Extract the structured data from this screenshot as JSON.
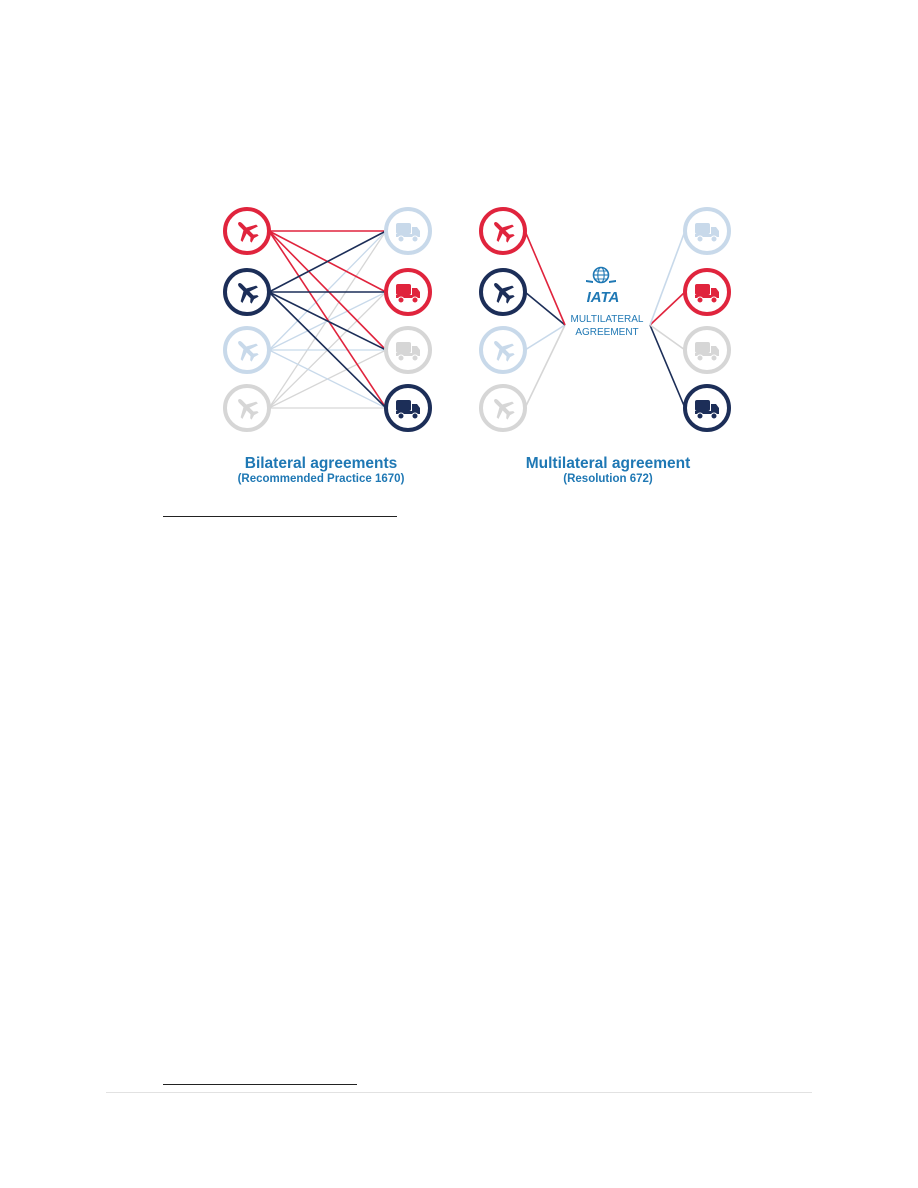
{
  "diagram": {
    "colors": {
      "red": "#e0243d",
      "navy": "#1c2e58",
      "lightblue": "#c8d9ea",
      "lightgray": "#d6d6d6",
      "accent": "#1f78b4"
    },
    "left": {
      "title": "Bilateral agreements",
      "subtitle": "(Recommended Practice 1670)",
      "airlines": [
        {
          "icon": "plane-icon",
          "color": "red"
        },
        {
          "icon": "plane-icon",
          "color": "navy"
        },
        {
          "icon": "plane-icon",
          "color": "lightblue"
        },
        {
          "icon": "plane-icon",
          "color": "lightgray"
        }
      ],
      "providers": [
        {
          "icon": "truck-icon",
          "color": "lightblue"
        },
        {
          "icon": "truck-icon",
          "color": "red"
        },
        {
          "icon": "truck-icon",
          "color": "lightgray"
        },
        {
          "icon": "truck-icon",
          "color": "navy"
        }
      ]
    },
    "right": {
      "title": "Multilateral agreement",
      "subtitle": "(Resolution 672)",
      "hub_logo": "IATA",
      "hub_label_1": "MULTILATERAL",
      "hub_label_2": "AGREEMENT",
      "airlines": [
        {
          "icon": "plane-icon",
          "color": "red"
        },
        {
          "icon": "plane-icon",
          "color": "navy"
        },
        {
          "icon": "plane-icon",
          "color": "lightblue"
        },
        {
          "icon": "plane-icon",
          "color": "lightgray"
        }
      ],
      "providers": [
        {
          "icon": "truck-icon",
          "color": "lightblue"
        },
        {
          "icon": "truck-icon",
          "color": "red"
        },
        {
          "icon": "truck-icon",
          "color": "lightgray"
        },
        {
          "icon": "truck-icon",
          "color": "navy"
        }
      ]
    }
  }
}
